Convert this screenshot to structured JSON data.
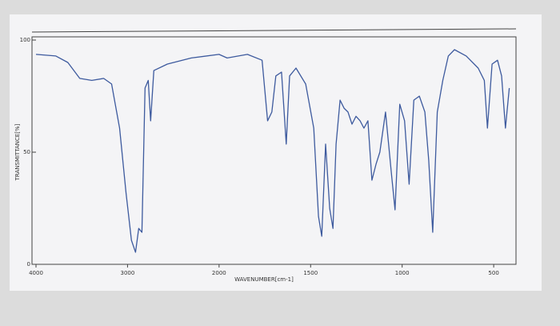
{
  "chart_data": {
    "type": "line",
    "xlabel": "WAVENUMBER[cm-1]",
    "ylabel": "TRANSMITTANCE[%]",
    "x": [
      4000,
      3783,
      3652,
      3522,
      3391,
      3261,
      3174,
      3087,
      3017,
      2957,
      2913,
      2878,
      2843,
      2809,
      2774,
      2748,
      2713,
      2565,
      2304,
      2000,
      1956,
      1845,
      1765,
      1735,
      1712,
      1690,
      1659,
      1633,
      1615,
      1580,
      1527,
      1483,
      1457,
      1439,
      1418,
      1396,
      1378,
      1361,
      1339,
      1317,
      1296,
      1274,
      1252,
      1230,
      1209,
      1187,
      1165,
      1143,
      1122,
      1091,
      1057,
      1039,
      1013,
      987,
      962,
      936,
      906,
      876,
      855,
      833,
      808,
      778,
      748,
      714,
      650,
      585,
      551,
      534,
      509,
      479,
      457,
      436,
      415
    ],
    "series": [
      {
        "color": "#3d5a9e",
        "values": [
          93.6,
          92.9,
          90,
          82.9,
          82,
          82.9,
          80.4,
          60.7,
          32,
          10.7,
          5.4,
          16,
          14.3,
          78.6,
          82,
          64,
          86.4,
          89.3,
          92,
          93.6,
          92,
          93.6,
          91,
          64,
          67.9,
          84,
          85.7,
          53.6,
          84,
          87.5,
          80.4,
          60.7,
          21.4,
          12.5,
          53.6,
          25,
          16,
          53.6,
          73.2,
          69.6,
          67.9,
          62.5,
          66,
          64,
          60.7,
          64,
          37.5,
          44.6,
          50,
          67.9,
          39.3,
          24.3,
          71.4,
          64,
          35.7,
          73.2,
          75,
          67.9,
          46.4,
          14.3,
          67.9,
          82,
          92.9,
          95.7,
          92.9,
          87.5,
          82,
          60.7,
          89.3,
          91,
          84,
          60.7,
          78.6
        ]
      }
    ],
    "xlim": [
      4000,
      400
    ],
    "xticks": [
      4000,
      3000,
      2000,
      1500,
      1000,
      500
    ],
    "ylim": [
      0,
      100
    ],
    "yticks": [
      0,
      50,
      100
    ]
  }
}
